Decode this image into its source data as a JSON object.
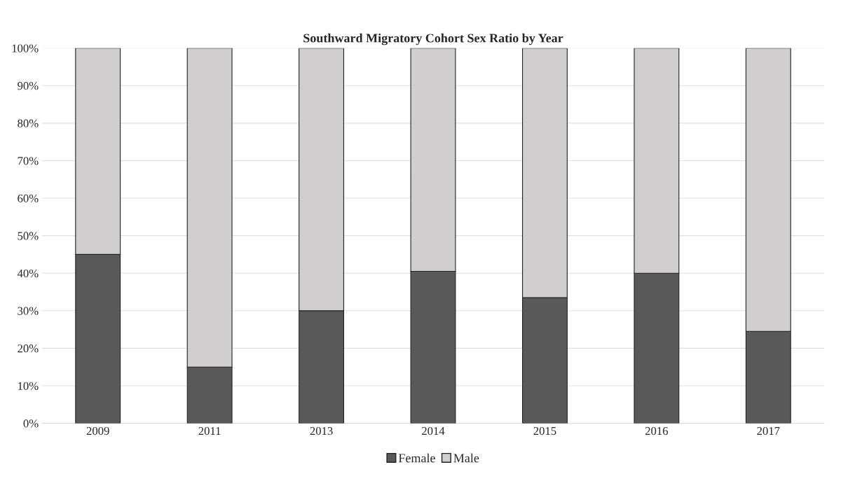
{
  "chart_data": {
    "type": "bar",
    "title": "Southward Migratory Cohort Sex Ratio by Year",
    "categories": [
      "2009",
      "2011",
      "2013",
      "2014",
      "2015",
      "2016",
      "2017"
    ],
    "stacked": true,
    "series": [
      {
        "name": "Female",
        "color": "#595959",
        "values": [
          45,
          15,
          30,
          40.5,
          33.5,
          40,
          24.5
        ]
      },
      {
        "name": "Male",
        "color": "#d0cece",
        "values": [
          55,
          85,
          70,
          59.5,
          66.5,
          60,
          75.5
        ]
      }
    ],
    "ylim": [
      0,
      100
    ],
    "yticks": [
      {
        "value": 0,
        "label": "0%"
      },
      {
        "value": 10,
        "label": "10%"
      },
      {
        "value": 20,
        "label": "20%"
      },
      {
        "value": 30,
        "label": "30%"
      },
      {
        "value": 40,
        "label": "40%"
      },
      {
        "value": 50,
        "label": "50%"
      },
      {
        "value": 60,
        "label": "60%"
      },
      {
        "value": 70,
        "label": "70%"
      },
      {
        "value": 80,
        "label": "80%"
      },
      {
        "value": 90,
        "label": "90%"
      },
      {
        "value": 100,
        "label": "100%"
      }
    ],
    "grid": "y",
    "legend": "bottom"
  }
}
